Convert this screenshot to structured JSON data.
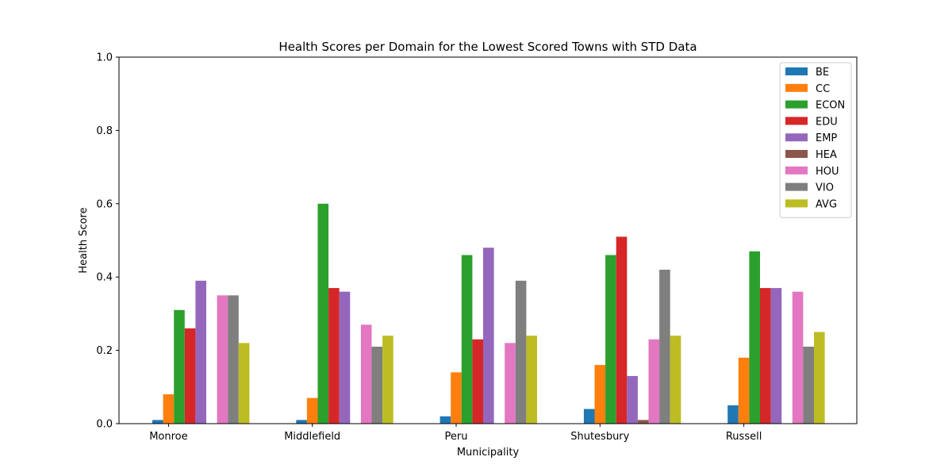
{
  "chart_data": {
    "type": "bar",
    "title": "Health Scores per Domain for the Lowest Scored Towns with STD Data",
    "xlabel": "Municipality",
    "ylabel": "Health Score",
    "ylim": [
      0,
      1.0
    ],
    "yticks": [
      "0.0",
      "0.2",
      "0.4",
      "0.6",
      "0.8",
      "1.0"
    ],
    "categories": [
      "Monroe",
      "Middlefield",
      "Peru",
      "Shutesbury",
      "Russell"
    ],
    "legend_position": "top-right",
    "grid": false,
    "series": [
      {
        "name": "BE",
        "color": "#1f77b4",
        "values": [
          0.01,
          0.01,
          0.02,
          0.04,
          0.05
        ]
      },
      {
        "name": "CC",
        "color": "#ff7f0e",
        "values": [
          0.08,
          0.07,
          0.14,
          0.16,
          0.18
        ]
      },
      {
        "name": "ECON",
        "color": "#2ca02c",
        "values": [
          0.31,
          0.6,
          0.46,
          0.46,
          0.47
        ]
      },
      {
        "name": "EDU",
        "color": "#d62728",
        "values": [
          0.26,
          0.37,
          0.23,
          0.51,
          0.37
        ]
      },
      {
        "name": "EMP",
        "color": "#9467bd",
        "values": [
          0.39,
          0.36,
          0.48,
          0.13,
          0.37
        ]
      },
      {
        "name": "HEA",
        "color": "#8c564b",
        "values": [
          0.0,
          0.0,
          0.0,
          0.01,
          0.0
        ]
      },
      {
        "name": "HOU",
        "color": "#e377c2",
        "values": [
          0.35,
          0.27,
          0.22,
          0.23,
          0.36
        ]
      },
      {
        "name": "VIO",
        "color": "#7f7f7f",
        "values": [
          0.35,
          0.21,
          0.39,
          0.42,
          0.21
        ]
      },
      {
        "name": "AVG",
        "color": "#bcbd22",
        "values": [
          0.22,
          0.24,
          0.24,
          0.24,
          0.25
        ]
      }
    ]
  }
}
